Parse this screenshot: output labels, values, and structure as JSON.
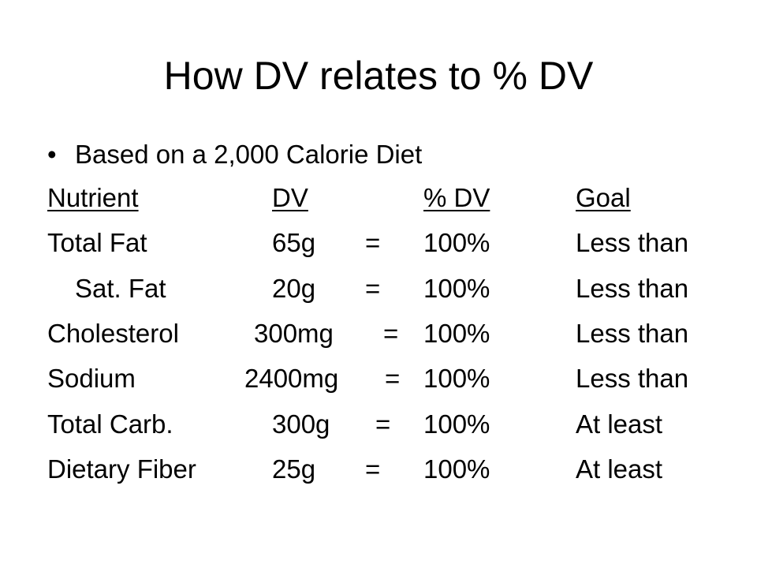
{
  "title": "How DV relates to % DV",
  "bullet": "Based on a 2,000 Calorie Diet",
  "table": {
    "header": {
      "nutrient": "Nutrient",
      "dv": "DV",
      "percent": "% DV",
      "goal": "Goal"
    },
    "rows": [
      {
        "nutrient": "Total Fat",
        "dv": "65g",
        "equals": "=",
        "percent": "100%",
        "goal": "Less than"
      },
      {
        "nutrient": "Sat. Fat",
        "dv": "20g",
        "equals": "=",
        "percent": "100%",
        "goal": "Less than"
      },
      {
        "nutrient": "Cholesterol",
        "dv": "300mg",
        "equals": "=",
        "percent": "100%",
        "goal": "Less than"
      },
      {
        "nutrient": "Sodium",
        "dv": "2400mg",
        "equals": "=",
        "percent": "100%",
        "goal": "Less than"
      },
      {
        "nutrient": "Total Carb.",
        "dv": "300g",
        "equals": "=",
        "percent": "100%",
        "goal": "At least"
      },
      {
        "nutrient": "Dietary Fiber",
        "dv": "25g",
        "equals": "=",
        "percent": "100%",
        "goal": "At least"
      }
    ]
  }
}
